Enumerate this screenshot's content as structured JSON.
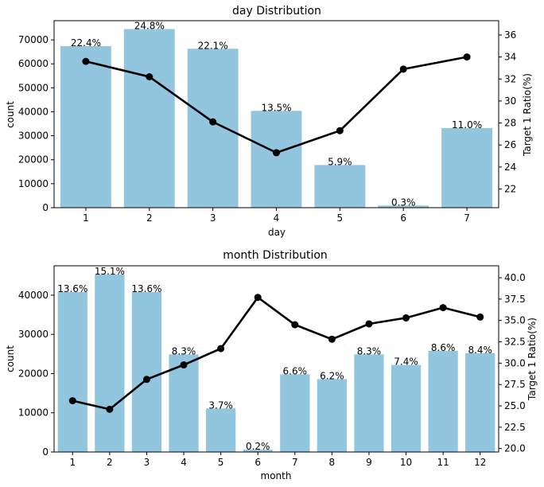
{
  "chart_data": [
    {
      "type": "bar+line",
      "title": "day Distribution",
      "xlabel": "day",
      "ylabel": "count",
      "y2label": "Target 1 Ratio(%)",
      "categories": [
        "1",
        "2",
        "3",
        "4",
        "5",
        "6",
        "7"
      ],
      "counts": [
        67400,
        74500,
        66300,
        40400,
        17800,
        900,
        33200
      ],
      "percent_labels": [
        "22.4%",
        "24.8%",
        "22.1%",
        "13.5%",
        "5.9%",
        "0.3%",
        "11.0%"
      ],
      "ratio": [
        33.6,
        32.2,
        28.1,
        25.3,
        27.3,
        32.9,
        34.0
      ],
      "ylim": [
        0,
        78000
      ],
      "yticks": [
        0,
        10000,
        20000,
        30000,
        40000,
        50000,
        60000,
        70000
      ],
      "y2lim": [
        20.3,
        37.3
      ],
      "y2ticks": [
        "22",
        "24",
        "26",
        "28",
        "30",
        "32",
        "34",
        "36"
      ],
      "bar_color": "#92c6df",
      "line_color": "#000000"
    },
    {
      "type": "bar+line",
      "title": "month Distribution",
      "xlabel": "month",
      "ylabel": "count",
      "y2label": "Target 1 Ratio(%)",
      "categories": [
        "1",
        "2",
        "3",
        "4",
        "5",
        "6",
        "7",
        "8",
        "9",
        "10",
        "11",
        "12"
      ],
      "counts": [
        40800,
        45300,
        40800,
        24900,
        11100,
        600,
        19800,
        18600,
        24900,
        22200,
        25800,
        25200
      ],
      "percent_labels": [
        "13.6%",
        "15.1%",
        "13.6%",
        "8.3%",
        "3.7%",
        "0.2%",
        "6.6%",
        "6.2%",
        "8.3%",
        "7.4%",
        "8.6%",
        "8.4%"
      ],
      "ratio": [
        25.6,
        24.6,
        28.1,
        29.8,
        31.7,
        37.7,
        34.5,
        32.8,
        34.6,
        35.3,
        36.5,
        35.4
      ],
      "ylim": [
        0,
        47500
      ],
      "yticks": [
        0,
        10000,
        20000,
        30000,
        40000
      ],
      "y2lim": [
        19.6,
        41.4
      ],
      "y2ticks": [
        "20.0",
        "22.5",
        "25.0",
        "27.5",
        "30.0",
        "32.5",
        "35.0",
        "37.5",
        "40.0"
      ],
      "bar_color": "#92c6df",
      "line_color": "#000000"
    }
  ]
}
